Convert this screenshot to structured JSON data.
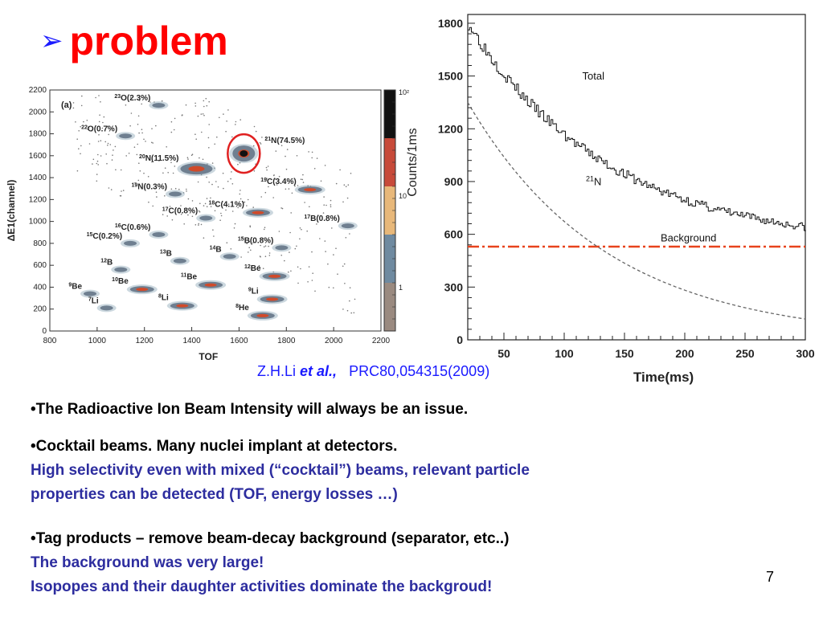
{
  "slide": {
    "title": "problem",
    "title_bullet_icon": "arrow-bullet-icon",
    "page_number": "7"
  },
  "citation": {
    "authors": "Z.H.Li",
    "etal": "et al.,",
    "ref": "PRC80,054315(2009)"
  },
  "bullets": [
    {
      "main": "•The Radioactive Ion Beam Intensity will always be an issue."
    },
    {
      "main": "•Cocktail beams. Many nuclei implant at detectors.",
      "sub": [
        "High selectivity even with mixed (“cocktail”) beams, relevant particle",
        "properties can be detected (TOF, energy losses …)"
      ]
    },
    {
      "main": "•Tag products – remove beam-decay background (separator, etc..)",
      "sub": [
        "The background was very large!",
        "Isopopes and their daughter activities dominate the backgroud!"
      ]
    }
  ],
  "colors": {
    "title": "#ff0000",
    "bullet_arrow": "#1a1aff",
    "blue_text": "#2d2d9f",
    "background_line": "#e8431c"
  },
  "chart_data": [
    {
      "type": "heatmap",
      "panel_label": "(a)",
      "xlabel": "TOF",
      "ylabel": "ΔE1(channel)",
      "xlim": [
        800,
        2200
      ],
      "ylim": [
        0,
        2200
      ],
      "xticks": [
        "800",
        "1000",
        "1200",
        "1400",
        "1600",
        "1800",
        "2000",
        "2200"
      ],
      "yticks": [
        "0",
        "200",
        "400",
        "600",
        "800",
        "1000",
        "1200",
        "1400",
        "1600",
        "1800",
        "2000",
        "2200"
      ],
      "colorbar_label": "Counts/1ms",
      "colorbar_ticks": [
        "1",
        "10",
        "10²"
      ],
      "colorbar_colors": [
        "#9a8a80",
        "#6f8aa0",
        "#e8b87a",
        "#c74a3a",
        "#111111"
      ],
      "islands": [
        {
          "label": "²³O(2.3%)",
          "sup": "23",
          "el": "O(2.3%)",
          "tof": 1260,
          "de": 2060,
          "size": "small"
        },
        {
          "label": "²²O(0.7%)",
          "sup": "22",
          "el": "O(0.7%)",
          "tof": 1120,
          "de": 1780,
          "size": "small"
        },
        {
          "label": "²¹N(74.5%)",
          "sup": "21",
          "el": "N(74.5%)",
          "tof": 1620,
          "de": 1620,
          "size": "main"
        },
        {
          "label": "²⁰N(11.5%)",
          "sup": "20",
          "el": "N(11.5%)",
          "tof": 1420,
          "de": 1480,
          "size": "big"
        },
        {
          "label": "¹⁹N(0.3%)",
          "sup": "19",
          "el": "N(0.3%)",
          "tof": 1330,
          "de": 1250,
          "size": "small"
        },
        {
          "label": "¹⁹C(3.4%)",
          "sup": "19",
          "el": "C(3.4%)",
          "tof": 1900,
          "de": 1290,
          "size": "mid"
        },
        {
          "label": "¹⁸C(4.1%)",
          "sup": "18",
          "el": "C(4.1%)",
          "tof": 1680,
          "de": 1080,
          "size": "mid"
        },
        {
          "label": "¹⁷C(0.8%)",
          "sup": "17",
          "el": "C(0.8%)",
          "tof": 1460,
          "de": 1030,
          "size": "small"
        },
        {
          "label": "¹⁶C(0.6%)",
          "sup": "16",
          "el": "C(0.6%)",
          "tof": 1260,
          "de": 880,
          "size": "small"
        },
        {
          "label": "¹⁷B(0.8%)",
          "sup": "17",
          "el": "B(0.8%)",
          "tof": 2060,
          "de": 960,
          "size": "small"
        },
        {
          "label": "¹⁵C(0.2%)",
          "sup": "15",
          "el": "C(0.2%)",
          "tof": 1140,
          "de": 800,
          "size": "small"
        },
        {
          "label": "¹⁵B(0.8%)",
          "sup": "15",
          "el": "B(0.8%)",
          "tof": 1780,
          "de": 760,
          "size": "small"
        },
        {
          "label": "¹³B",
          "sup": "13",
          "el": "B",
          "tof": 1350,
          "de": 640,
          "size": "small"
        },
        {
          "label": "¹⁴B",
          "sup": "14",
          "el": "B",
          "tof": 1560,
          "de": 680,
          "size": "small"
        },
        {
          "label": "¹²B",
          "sup": "12",
          "el": "B",
          "tof": 1100,
          "de": 560,
          "size": "small"
        },
        {
          "label": "¹²Be",
          "sup": "12",
          "el": "Be",
          "tof": 1750,
          "de": 500,
          "size": "mid"
        },
        {
          "label": "¹¹Be",
          "sup": "11",
          "el": "Be",
          "tof": 1480,
          "de": 420,
          "size": "mid"
        },
        {
          "label": "¹⁰Be",
          "sup": "10",
          "el": "Be",
          "tof": 1190,
          "de": 380,
          "size": "mid"
        },
        {
          "label": "⁹Be",
          "sup": "9",
          "el": "Be",
          "tof": 970,
          "de": 340,
          "size": "small"
        },
        {
          "label": "⁹Li",
          "sup": "9",
          "el": "Li",
          "tof": 1740,
          "de": 290,
          "size": "mid"
        },
        {
          "label": "⁸Li",
          "sup": "8",
          "el": "Li",
          "tof": 1360,
          "de": 230,
          "size": "mid"
        },
        {
          "label": "⁷Li",
          "sup": "7",
          "el": "Li",
          "tof": 1040,
          "de": 210,
          "size": "small"
        },
        {
          "label": "⁸He",
          "sup": "8",
          "el": "He",
          "tof": 1700,
          "de": 140,
          "size": "mid"
        }
      ]
    },
    {
      "type": "line",
      "xlabel": "Time(ms)",
      "ylabel": "",
      "xlim": [
        20,
        300
      ],
      "ylim": [
        0,
        1850
      ],
      "xticks": [
        50,
        100,
        150,
        200,
        250,
        300
      ],
      "yticks": [
        0,
        300,
        600,
        900,
        1200,
        1500,
        1800
      ],
      "series": [
        {
          "name": "Total",
          "style": "step",
          "model": {
            "background": 530,
            "amplitude": 1270,
            "tau_ms": 115
          },
          "x_start": 20,
          "x_end": 300
        },
        {
          "name": "²¹N",
          "style": "dashed",
          "model": {
            "amplitude": 1350,
            "tau_ms": 115
          },
          "x_start": 20,
          "x_end": 300
        },
        {
          "name": "Background",
          "style": "dashdot",
          "value": 530
        }
      ],
      "annotations": [
        {
          "text": "Total",
          "x": 115,
          "y": 1480
        },
        {
          "text": "N",
          "sup": "21",
          "x": 118,
          "y": 880
        },
        {
          "text": "Background",
          "x": 180,
          "y": 560
        }
      ]
    }
  ]
}
